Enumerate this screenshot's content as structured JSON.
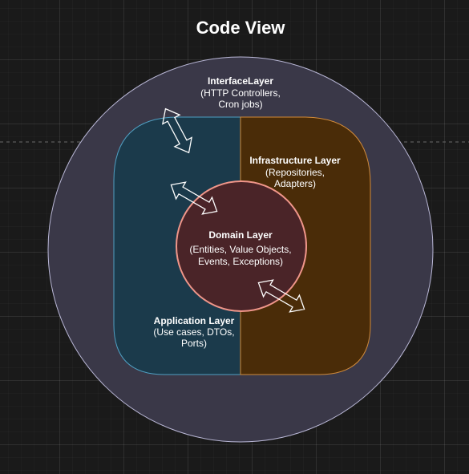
{
  "diagram": {
    "title": "Code View",
    "colors": {
      "interface_fill": "#3a3848",
      "interface_stroke": "#b9b7d6",
      "application_fill": "#1b3a4b",
      "application_stroke": "#4f9fc2",
      "infrastructure_fill": "#4a2c08",
      "infrastructure_stroke": "#d08a3a",
      "domain_fill": "#4a2428",
      "domain_stroke": "#f0968a"
    },
    "layers": {
      "interface": {
        "name": "InterfaceLayer",
        "line1": "(HTTP Controllers,",
        "line2": "Cron jobs)"
      },
      "infrastructure": {
        "name": "Infrastructure Layer",
        "line1": "(Repositories,",
        "line2": "Adapters)"
      },
      "domain": {
        "name": "Domain Layer",
        "line1": "(Entities, Value Objects,",
        "line2": "Events, Exceptions)"
      },
      "application": {
        "name": "Application Layer",
        "line1": "(Use cases, DTOs,",
        "line2": "Ports)"
      }
    }
  }
}
